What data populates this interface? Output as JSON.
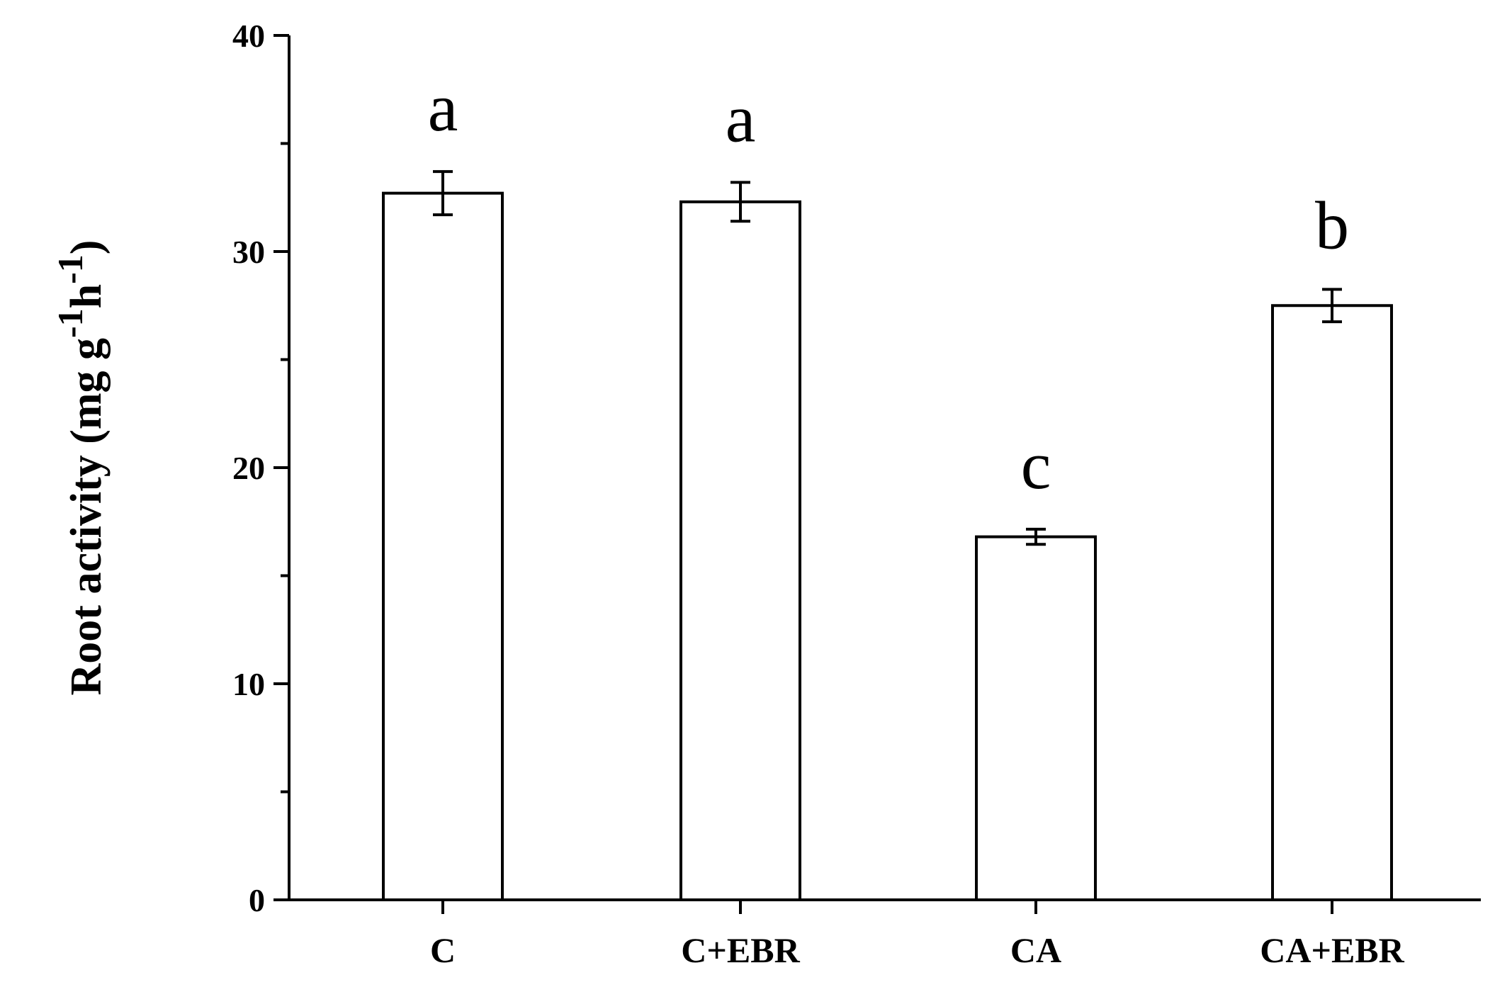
{
  "chart_data": {
    "type": "bar",
    "title": "",
    "xlabel": "",
    "ylabel": "Root activity (mg g",
    "ylabel_parts": {
      "main": "Root activity (mg g",
      "sup1": "-1",
      "mid": "h",
      "sup2": "-1",
      "end": ")"
    },
    "categories": [
      "C",
      "C+EBR",
      "CA",
      "CA+EBR"
    ],
    "values": [
      32.7,
      32.3,
      16.8,
      27.5
    ],
    "errors": [
      1.0,
      0.9,
      0.35,
      0.75
    ],
    "significance": [
      "a",
      "a",
      "c",
      "b"
    ],
    "ylim": [
      0,
      40
    ],
    "yticks_major": [
      0,
      10,
      20,
      30,
      40
    ],
    "ytick_labels": [
      "0",
      "10",
      "20",
      "30",
      "40"
    ],
    "yticks_minor": [
      5,
      15,
      25,
      35
    ],
    "grid": false,
    "legend": "none",
    "bar_fill": "#ffffff",
    "bar_stroke": "#000000"
  }
}
